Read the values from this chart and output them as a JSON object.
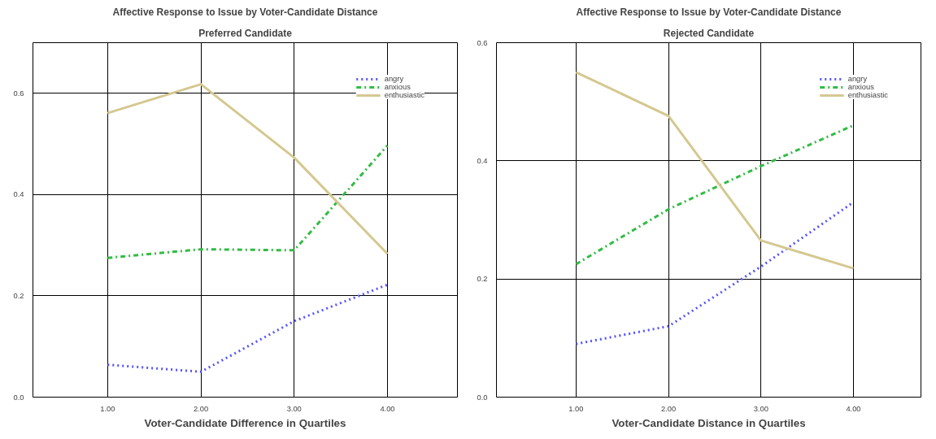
{
  "chart_data": [
    {
      "type": "line",
      "title": "Affective Response to Issue by Voter-Candidate Distance",
      "subtitle": "Preferred Candidate",
      "xlabel": "Voter-Candidate Difference in Quartiles",
      "x": [
        1,
        2,
        3,
        4
      ],
      "xlim": [
        0.2,
        4.75
      ],
      "xticks": [
        {
          "value": 1,
          "label": "1.00"
        },
        {
          "value": 2,
          "label": "2.00"
        },
        {
          "value": 3,
          "label": "3.00"
        },
        {
          "value": 4,
          "label": "4.00"
        }
      ],
      "ylim": [
        0,
        0.7
      ],
      "yticks": [
        {
          "value": 0,
          "label": "0.0"
        },
        {
          "value": 0.2,
          "label": "0.2"
        },
        {
          "value": 0.4,
          "label": "0.4"
        },
        {
          "value": 0.6,
          "label": "0.6"
        }
      ],
      "grid": true,
      "legend": "top right",
      "series": [
        {
          "name": "angry",
          "color": "#5555ff",
          "line_style": "dotted",
          "values": [
            0.064,
            0.05,
            0.15,
            0.222
          ]
        },
        {
          "name": "anxious",
          "color": "#33bb44",
          "line_style": "dashdot",
          "values": [
            0.275,
            0.292,
            0.29,
            0.497
          ]
        },
        {
          "name": "enthusiastic",
          "color": "#d4c890",
          "line_style": "solid",
          "values": [
            0.561,
            0.618,
            0.473,
            0.283
          ]
        }
      ]
    },
    {
      "type": "line",
      "title": "Affective Response to Issue by Voter-Candidate Distance",
      "subtitle": "Rejected Candidate",
      "xlabel": "Voter-Candidate Distance in Quartiles",
      "x": [
        1,
        2,
        3,
        4
      ],
      "xlim": [
        0.14,
        4.73
      ],
      "xticks": [
        {
          "value": 1,
          "label": "1.00"
        },
        {
          "value": 2,
          "label": "2.00"
        },
        {
          "value": 3,
          "label": "3.00"
        },
        {
          "value": 4,
          "label": "4.00"
        }
      ],
      "ylim": [
        0,
        0.6
      ],
      "yticks": [
        {
          "value": 0,
          "label": "0.0"
        },
        {
          "value": 0.2,
          "label": "0.2"
        },
        {
          "value": 0.4,
          "label": "0.4"
        },
        {
          "value": 0.6,
          "label": "0.6"
        }
      ],
      "grid": true,
      "legend": "top right",
      "series": [
        {
          "name": "angry",
          "color": "#5555ff",
          "line_style": "dotted",
          "values": [
            0.09,
            0.12,
            0.221,
            0.33
          ]
        },
        {
          "name": "anxious",
          "color": "#33bb44",
          "line_style": "dashdot",
          "values": [
            0.225,
            0.318,
            0.391,
            0.46
          ]
        },
        {
          "name": "enthusiastic",
          "color": "#d4c890",
          "line_style": "solid",
          "values": [
            0.55,
            0.476,
            0.265,
            0.218
          ]
        }
      ]
    }
  ]
}
